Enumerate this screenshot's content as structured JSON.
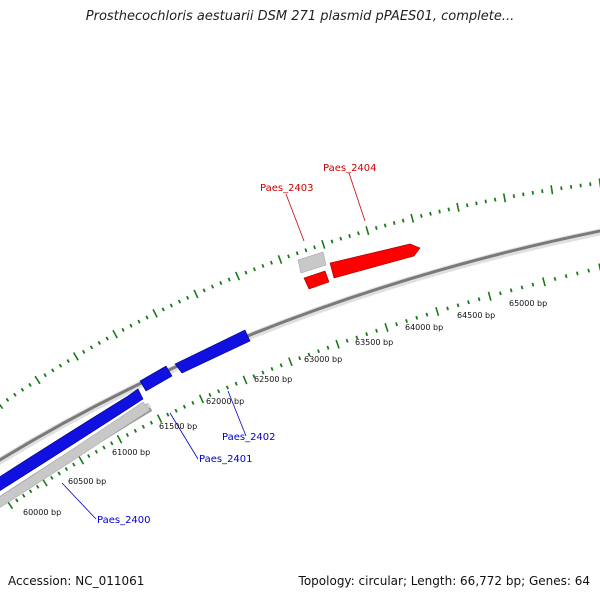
{
  "title": "Prosthecochloris aestuarii DSM 271 plasmid pPAES01, complete...",
  "footer": {
    "accession": "Accession: NC_011061",
    "summary": "Topology: circular; Length: 66,772 bp; Genes: 64"
  },
  "colors": {
    "forward_gene": "#ff0000",
    "reverse_gene": "#0000ff",
    "other_feature": "#c8c8c8",
    "backbone": "#808080",
    "ticks": "#1a7a1a",
    "forward_label": "#cc0000",
    "reverse_label": "#0000cc"
  },
  "position_labels": [
    "60000 bp",
    "60500 bp",
    "61000 bp",
    "61500 bp",
    "62000 bp",
    "62500 bp",
    "63000 bp",
    "63500 bp",
    "64000 bp",
    "64500 bp",
    "65000 bp"
  ],
  "genes": [
    {
      "label": "Paes_2400",
      "strand": "reverse"
    },
    {
      "label": "Paes_2401",
      "strand": "reverse"
    },
    {
      "label": "Paes_2402",
      "strand": "reverse"
    },
    {
      "label": "Paes_2403",
      "strand": "forward"
    },
    {
      "label": "Paes_2404",
      "strand": "forward"
    }
  ]
}
